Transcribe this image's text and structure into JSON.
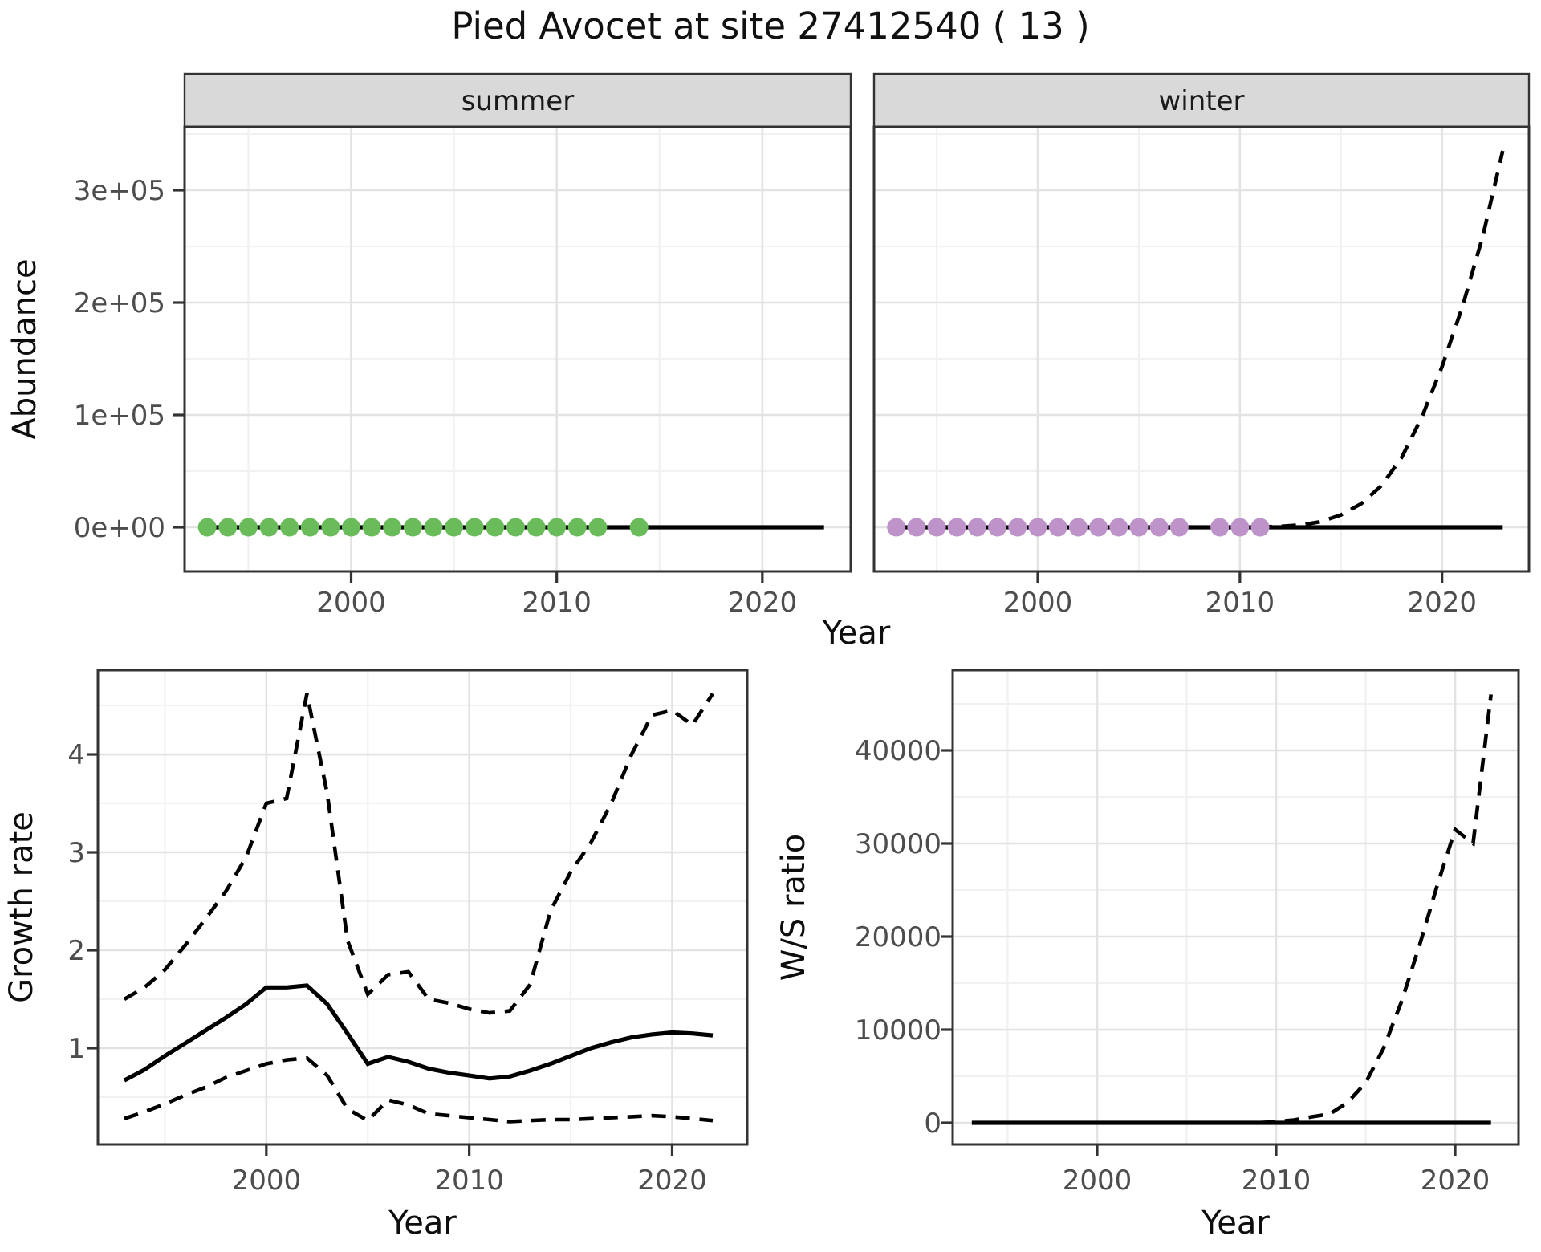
{
  "title": "Pied Avocet at site 27412540 ( 13 )",
  "colors": {
    "summer_points": "#6abc5b",
    "winter_points": "#bd93c9",
    "line": "#000000",
    "strip_fill": "#d9d9d9",
    "grid_major": "#e3e3e3",
    "grid_minor": "#f1f1f1",
    "panel_border": "#333333",
    "tick_text": "#4d4d4d"
  },
  "chart_data": [
    {
      "type": "line",
      "id": "abundance",
      "ylabel": "Abundance",
      "xlabel": "Year",
      "xticks": {
        "values": [
          2000,
          2010,
          2020
        ],
        "labels": [
          "2000",
          "2010",
          "2020"
        ]
      },
      "yticks": {
        "values": [
          0,
          100000,
          200000,
          300000
        ],
        "labels": [
          "0e+00",
          "1e+05",
          "2e+05",
          "3e+05"
        ]
      },
      "xlim": [
        1991.9,
        2024.3
      ],
      "ylim": [
        -39286,
        356428
      ],
      "grid": true,
      "x": [
        1993,
        1994,
        1995,
        1996,
        1997,
        1998,
        1999,
        2000,
        2001,
        2002,
        2003,
        2004,
        2005,
        2006,
        2007,
        2008,
        2009,
        2010,
        2011,
        2012,
        2013,
        2014,
        2015,
        2016,
        2017,
        2018,
        2019,
        2020,
        2021,
        2022,
        2023
      ],
      "facets": [
        {
          "label": "summer",
          "points_years": [
            1993,
            1994,
            1995,
            1996,
            1997,
            1998,
            1999,
            2000,
            2001,
            2002,
            2003,
            2004,
            2005,
            2006,
            2007,
            2008,
            2009,
            2010,
            2011,
            2012,
            2014
          ],
          "points_value": 0,
          "point_color": "#6abc5b",
          "fit_line": [
            0,
            0,
            0,
            0,
            0,
            0,
            0,
            0,
            0,
            0,
            0,
            0,
            0,
            0,
            0,
            0,
            0,
            0,
            0,
            0,
            0,
            0,
            0,
            0,
            0,
            0,
            0,
            0,
            0,
            0,
            0
          ],
          "projection_line": [
            0,
            0,
            0,
            0,
            0,
            0,
            0,
            0,
            0,
            0,
            0,
            0,
            0,
            0,
            0,
            0,
            0,
            0,
            0,
            0,
            0,
            0,
            0,
            0,
            0,
            0,
            0,
            0,
            0,
            0,
            0
          ]
        },
        {
          "label": "winter",
          "points_years": [
            1993,
            1994,
            1995,
            1996,
            1997,
            1998,
            1999,
            2000,
            2001,
            2002,
            2003,
            2004,
            2005,
            2006,
            2007,
            2009,
            2010,
            2011
          ],
          "points_value": 0,
          "point_color": "#bd93c9",
          "fit_line": [
            0,
            0,
            0,
            0,
            0,
            0,
            0,
            0,
            0,
            0,
            0,
            0,
            0,
            0,
            0,
            0,
            0,
            0,
            0,
            0,
            0,
            0,
            0,
            0,
            0,
            0,
            0,
            0,
            0,
            0,
            0
          ],
          "projection_line": [
            0,
            0,
            0,
            0,
            0,
            0,
            0,
            0,
            0,
            0,
            0,
            0,
            0,
            0,
            0,
            0,
            0,
            0,
            300,
            800,
            2000,
            5000,
            11000,
            21000,
            37000,
            62000,
            98000,
            143000,
            196000,
            258000,
            335000
          ]
        }
      ]
    },
    {
      "type": "line",
      "id": "growth-rate",
      "ylabel": "Growth rate",
      "xlabel": "Year",
      "xticks": {
        "values": [
          2000,
          2010,
          2020
        ],
        "labels": [
          "2000",
          "2010",
          "2020"
        ]
      },
      "yticks": {
        "values": [
          1,
          2,
          3,
          4
        ],
        "labels": [
          "1",
          "2",
          "3",
          "4"
        ]
      },
      "xlim": [
        1991.7,
        2023.7
      ],
      "ylim": [
        0.016,
        4.861
      ],
      "grid": true,
      "x": [
        1993,
        1994,
        1995,
        1996,
        1997,
        1998,
        1999,
        2000,
        2001,
        2002,
        2003,
        2004,
        2005,
        2006,
        2007,
        2008,
        2009,
        2010,
        2011,
        2012,
        2013,
        2014,
        2015,
        2016,
        2017,
        2018,
        2019,
        2020,
        2021,
        2022
      ],
      "series": [
        {
          "name": "median",
          "style": "solid",
          "values": [
            0.67,
            0.78,
            0.92,
            1.05,
            1.18,
            1.31,
            1.45,
            1.62,
            1.62,
            1.64,
            1.45,
            1.15,
            0.84,
            0.91,
            0.86,
            0.79,
            0.75,
            0.72,
            0.69,
            0.71,
            0.77,
            0.84,
            0.92,
            1.0,
            1.06,
            1.11,
            1.14,
            1.16,
            1.15,
            1.13
          ]
        },
        {
          "name": "upper",
          "style": "dashed",
          "values": [
            1.5,
            1.62,
            1.8,
            2.05,
            2.32,
            2.6,
            2.95,
            3.5,
            3.55,
            4.62,
            3.6,
            2.1,
            1.55,
            1.75,
            1.78,
            1.5,
            1.46,
            1.4,
            1.36,
            1.38,
            1.65,
            2.4,
            2.8,
            3.1,
            3.5,
            4.0,
            4.4,
            4.45,
            4.3,
            4.62
          ]
        },
        {
          "name": "lower",
          "style": "dashed",
          "values": [
            0.28,
            0.35,
            0.43,
            0.52,
            0.6,
            0.7,
            0.77,
            0.84,
            0.88,
            0.9,
            0.72,
            0.38,
            0.26,
            0.47,
            0.42,
            0.33,
            0.31,
            0.29,
            0.27,
            0.25,
            0.26,
            0.27,
            0.27,
            0.28,
            0.29,
            0.3,
            0.31,
            0.3,
            0.28,
            0.26
          ]
        }
      ]
    },
    {
      "type": "line",
      "id": "ws-ratio",
      "ylabel": "W/S ratio",
      "xlabel": "Year",
      "xticks": {
        "values": [
          2000,
          2010,
          2020
        ],
        "labels": [
          "2000",
          "2010",
          "2020"
        ]
      },
      "yticks": {
        "values": [
          0,
          10000,
          20000,
          30000,
          40000
        ],
        "labels": [
          "0",
          "10000",
          "20000",
          "30000",
          "40000"
        ]
      },
      "xlim": [
        1991.93,
        2023.54
      ],
      "ylim": [
        -2328,
        48620
      ],
      "grid": true,
      "x": [
        1993,
        1994,
        1995,
        1996,
        1997,
        1998,
        1999,
        2000,
        2001,
        2002,
        2003,
        2004,
        2005,
        2006,
        2007,
        2008,
        2009,
        2010,
        2011,
        2012,
        2013,
        2014,
        2015,
        2016,
        2017,
        2018,
        2019,
        2020,
        2021,
        2022
      ],
      "series": [
        {
          "name": "ratio-fit",
          "style": "solid",
          "values": [
            0,
            0,
            0,
            0,
            0,
            0,
            0,
            0,
            0,
            0,
            0,
            0,
            0,
            0,
            0,
            0,
            0,
            0,
            0,
            0,
            0,
            0,
            0,
            0,
            0,
            0,
            0,
            0,
            0,
            0
          ]
        },
        {
          "name": "ratio-projection",
          "style": "dashed",
          "values": [
            0,
            0,
            0,
            0,
            0,
            0,
            0,
            0,
            0,
            0,
            0,
            0,
            0,
            0,
            0,
            0,
            0,
            120,
            300,
            650,
            950,
            2200,
            4300,
            8000,
            13000,
            19000,
            25500,
            31500,
            30000,
            46000
          ]
        }
      ]
    }
  ]
}
